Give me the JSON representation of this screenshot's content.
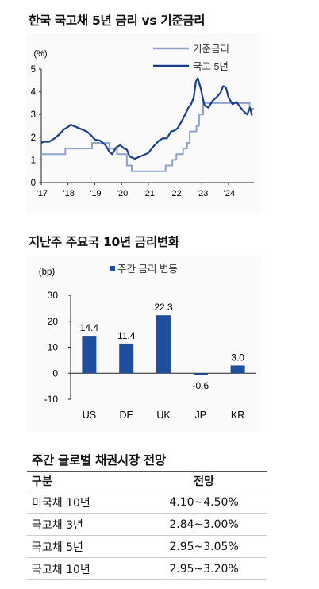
{
  "chart_data": [
    {
      "type": "line",
      "title": "한국 국고채 5년 금리 vs 기준금리",
      "ylabel": "(%)",
      "ylim": [
        0,
        5
      ],
      "yticks": [
        0,
        1,
        2,
        3,
        4,
        5
      ],
      "xlim": [
        2017.0,
        2024.95
      ],
      "x_tick_labels": [
        "'17",
        "'18",
        "'19",
        "'20",
        "'21",
        "'22",
        "'23",
        "'24"
      ],
      "x_tick_values": [
        2017,
        2018,
        2019,
        2020,
        2021,
        2022,
        2023,
        2024
      ],
      "legend_position": "top-right",
      "series": [
        {
          "name": "기준금리",
          "color": "#8ea2cf",
          "step": true,
          "x": [
            2017.0,
            2017.9,
            2018.9,
            2019.55,
            2019.83,
            2020.2,
            2020.38,
            2021.65,
            2021.9,
            2022.05,
            2022.3,
            2022.45,
            2022.55,
            2022.8,
            2022.9,
            2023.05,
            2024.79,
            2024.95
          ],
          "y": [
            1.25,
            1.5,
            1.75,
            1.5,
            1.25,
            0.75,
            0.5,
            0.75,
            1.0,
            1.25,
            1.5,
            1.75,
            2.25,
            2.5,
            3.0,
            3.5,
            3.25,
            3.25
          ]
        },
        {
          "name": "국고 5년",
          "color": "#1b3f8f",
          "step": false,
          "x": [
            2017.0,
            2017.1,
            2017.3,
            2017.5,
            2017.7,
            2017.85,
            2018.0,
            2018.1,
            2018.3,
            2018.5,
            2018.7,
            2018.85,
            2019.0,
            2019.2,
            2019.4,
            2019.55,
            2019.65,
            2019.8,
            2019.95,
            2020.1,
            2020.2,
            2020.3,
            2020.5,
            2020.7,
            2020.9,
            2021.0,
            2021.2,
            2021.4,
            2021.55,
            2021.7,
            2021.85,
            2022.0,
            2022.1,
            2022.25,
            2022.4,
            2022.5,
            2022.6,
            2022.7,
            2022.78,
            2022.85,
            2022.95,
            2023.1,
            2023.25,
            2023.4,
            2023.55,
            2023.7,
            2023.8,
            2023.9,
            2024.0,
            2024.15,
            2024.3,
            2024.45,
            2024.6,
            2024.7,
            2024.8,
            2024.88
          ],
          "y": [
            1.75,
            1.8,
            1.8,
            1.95,
            2.15,
            2.35,
            2.45,
            2.55,
            2.45,
            2.35,
            2.25,
            2.1,
            1.9,
            1.85,
            1.65,
            1.35,
            1.25,
            1.55,
            1.65,
            1.5,
            1.45,
            1.15,
            1.05,
            1.15,
            1.25,
            1.3,
            1.6,
            1.85,
            1.95,
            1.95,
            2.25,
            2.3,
            2.4,
            2.7,
            3.05,
            3.3,
            3.45,
            3.75,
            4.45,
            4.6,
            4.2,
            3.4,
            3.3,
            3.6,
            3.75,
            3.95,
            4.25,
            4.2,
            3.75,
            3.45,
            3.55,
            3.3,
            3.1,
            3.0,
            3.3,
            2.95
          ]
        }
      ]
    },
    {
      "type": "bar",
      "title": "지난주 주요국 10년 금리변화",
      "ylabel": "(bp)",
      "ylim": [
        -10,
        30
      ],
      "yticks": [
        -10,
        0,
        10,
        20,
        30
      ],
      "categories": [
        "US",
        "DE",
        "UK",
        "JP",
        "KR"
      ],
      "series": [
        {
          "name": "주간 금리 변동",
          "color": "#1f4e9e",
          "values": [
            14.4,
            11.4,
            22.3,
            -0.6,
            3.0
          ]
        }
      ],
      "data_labels": [
        "14.4",
        "11.4",
        "22.3",
        "-0.6",
        "3.0"
      ],
      "legend_position": "top"
    }
  ],
  "outlook": {
    "title": "주간 글로벌 채권시장 전망",
    "headers": [
      "구분",
      "전망"
    ],
    "rows": [
      [
        "미국채 10년",
        "4.10~4.50%"
      ],
      [
        "국고채 3년",
        "2.84~3.00%"
      ],
      [
        "국고채 5년",
        "2.95~3.05%"
      ],
      [
        "국고채 10년",
        "2.95~3.20%"
      ]
    ]
  }
}
